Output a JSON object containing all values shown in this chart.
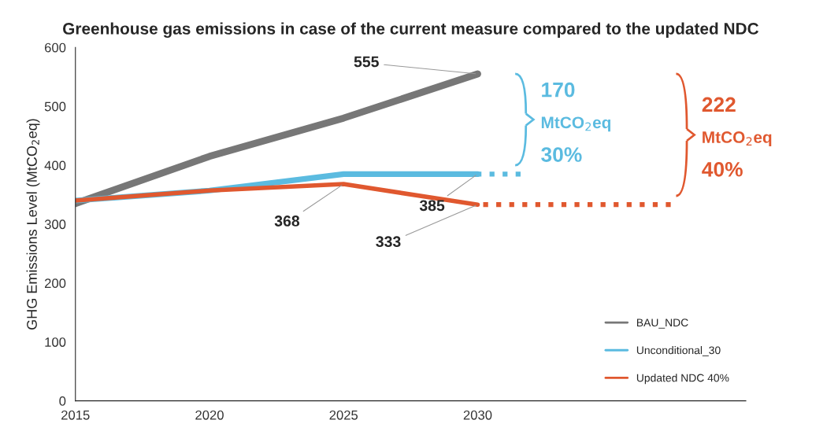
{
  "chart_data": {
    "type": "line",
    "title": "Greenhouse gas emissions in case of the current measure compared to the updated NDC",
    "ylabel": "GHG Emissions Level (MtCO$_{2}$eq)",
    "x": [
      2015,
      2020,
      2025,
      2030
    ],
    "xlim": [
      2015,
      2040
    ],
    "xticks": [
      2015,
      2020,
      2025,
      2030
    ],
    "ylim": [
      0,
      600
    ],
    "yticks": [
      0,
      100,
      200,
      300,
      400,
      500,
      600
    ],
    "series": [
      {
        "name": "BAU_NDC",
        "color": "#777777",
        "values": [
          335,
          415,
          480,
          555
        ],
        "value_labels": [
          null,
          null,
          null,
          "555"
        ]
      },
      {
        "name": "Unconditional_30",
        "color": "#5bbbe0",
        "values": [
          340,
          357,
          385,
          385
        ],
        "value_labels": [
          null,
          null,
          null,
          "385"
        ]
      },
      {
        "name": "Updated NDC 40%",
        "color": "#e0582f",
        "values": [
          340,
          357,
          368,
          333
        ],
        "value_labels": [
          null,
          null,
          "368",
          "333"
        ]
      },
      {
        "color": "#5bbbe0",
        "x": [
          2031.6,
          2030
        ],
        "values": [
          385,
          385
        ],
        "line_style": "dotted"
      },
      {
        "color": "#e0582f",
        "x": [
          2037.2,
          2030
        ],
        "values": [
          333,
          333
        ],
        "line_style": "dotted"
      }
    ],
    "annotations": [
      "170",
      "MtCO$_{2}$eq",
      "30%",
      "222",
      "MtCO$_{2}$eq",
      "40%"
    ],
    "legend": "bottom right",
    "grid": false,
    "marker": "none"
  }
}
